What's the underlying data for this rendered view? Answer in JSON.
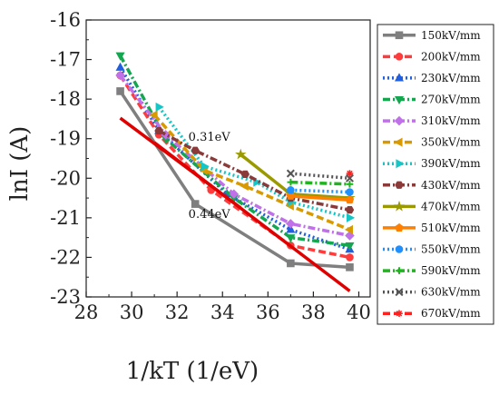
{
  "chart_data": {
    "type": "line",
    "title": "",
    "xlabel": "1/kT (1/eV)",
    "ylabel": "lnI (A)",
    "xlim": [
      28,
      40.5
    ],
    "ylim": [
      -23,
      -16
    ],
    "xticks": [
      28,
      30,
      32,
      34,
      36,
      38,
      40
    ],
    "yticks": [
      -23,
      -22,
      -21,
      -20,
      -19,
      -18,
      -17,
      -16
    ],
    "grid": false,
    "legend_position": "right",
    "series": [
      {
        "name": "150kV/mm",
        "color": "#7f7f7f",
        "dash": "solid",
        "marker": "square",
        "x": [
          29.5,
          32.8,
          37.0,
          39.6
        ],
        "y": [
          -17.8,
          -20.65,
          -22.15,
          -22.25
        ]
      },
      {
        "name": "200kV/mm",
        "color": "#ff3b3b",
        "dash": "dash",
        "marker": "circle",
        "x": [
          29.5,
          31.2,
          33.5,
          37.0,
          39.6
        ],
        "y": [
          -17.4,
          -18.9,
          -20.3,
          -21.7,
          -22.0
        ]
      },
      {
        "name": "230kV/mm",
        "color": "#1f5fe0",
        "dash": "dot",
        "marker": "triangle",
        "x": [
          29.5,
          31.2,
          34.2,
          37.0,
          39.6
        ],
        "y": [
          -17.2,
          -18.8,
          -20.4,
          -21.3,
          -21.8
        ]
      },
      {
        "name": "270kV/mm",
        "color": "#15a650",
        "dash": "dashdot",
        "marker": "triangle-down",
        "x": [
          29.5,
          31.5,
          34.5,
          37.0,
          39.6
        ],
        "y": [
          -16.9,
          -19.0,
          -20.5,
          -21.5,
          -21.7
        ]
      },
      {
        "name": "310kV/mm",
        "color": "#c070e8",
        "dash": "dashdot",
        "marker": "diamond",
        "x": [
          29.5,
          31.5,
          34.5,
          37.0,
          39.6
        ],
        "y": [
          -17.4,
          -18.9,
          -20.4,
          -21.15,
          -21.45
        ]
      },
      {
        "name": "350kV/mm",
        "color": "#d99a00",
        "dash": "dash",
        "marker": "triangle-left",
        "x": [
          31.0,
          33.2,
          35.0,
          37.0,
          39.6
        ],
        "y": [
          -18.4,
          -19.8,
          -20.2,
          -20.7,
          -21.3
        ]
      },
      {
        "name": "390kV/mm",
        "color": "#15c6c6",
        "dash": "dot",
        "marker": "triangle-right",
        "x": [
          31.2,
          33.2,
          35.5,
          37.0,
          39.6
        ],
        "y": [
          -18.2,
          -19.7,
          -20.1,
          -20.6,
          -21.0
        ]
      },
      {
        "name": "430kV/mm",
        "color": "#8b3a3a",
        "dash": "dashdot",
        "marker": "hexagon",
        "x": [
          31.2,
          32.8,
          35.0,
          37.0,
          39.6
        ],
        "y": [
          -18.8,
          -19.3,
          -19.9,
          -20.5,
          -20.8
        ]
      },
      {
        "name": "470kV/mm",
        "color": "#9a9a00",
        "dash": "solid",
        "marker": "star",
        "x": [
          34.8,
          37.0,
          39.6
        ],
        "y": [
          -19.4,
          -20.4,
          -20.5
        ]
      },
      {
        "name": "510kV/mm",
        "color": "#ff7f00",
        "dash": "solid",
        "marker": "pentagon",
        "x": [
          37.0,
          39.6
        ],
        "y": [
          -20.45,
          -20.55
        ]
      },
      {
        "name": "550kV/mm",
        "color": "#1e90ff",
        "dash": "dot",
        "marker": "circle",
        "x": [
          37.0,
          39.6
        ],
        "y": [
          -20.3,
          -20.35
        ]
      },
      {
        "name": "590kV/mm",
        "color": "#1fb51f",
        "dash": "dashdot",
        "marker": "plus",
        "x": [
          37.0,
          39.6
        ],
        "y": [
          -20.1,
          -20.15
        ]
      },
      {
        "name": "630kV/mm",
        "color": "#555555",
        "dash": "dot",
        "marker": "x",
        "x": [
          37.0,
          39.6
        ],
        "y": [
          -19.88,
          -20.0
        ]
      },
      {
        "name": "670kV/mm",
        "color": "#ff2020",
        "dash": "dash",
        "marker": "asterisk",
        "x": [
          39.6
        ],
        "y": [
          -19.88
        ]
      }
    ],
    "fit_lines": [
      {
        "x": [
          29.5,
          34.8
        ],
        "y": [
          -18.48,
          -20.75
        ],
        "color": "#e00000"
      },
      {
        "x": [
          31.0,
          39.6
        ],
        "y": [
          -19.1,
          -22.85
        ],
        "color": "#e00000"
      }
    ],
    "annotations": [
      {
        "text": "0.31eV",
        "x": 32.5,
        "y": -19.05
      },
      {
        "text": "0.44eV",
        "x": 32.5,
        "y": -21.0
      }
    ]
  }
}
